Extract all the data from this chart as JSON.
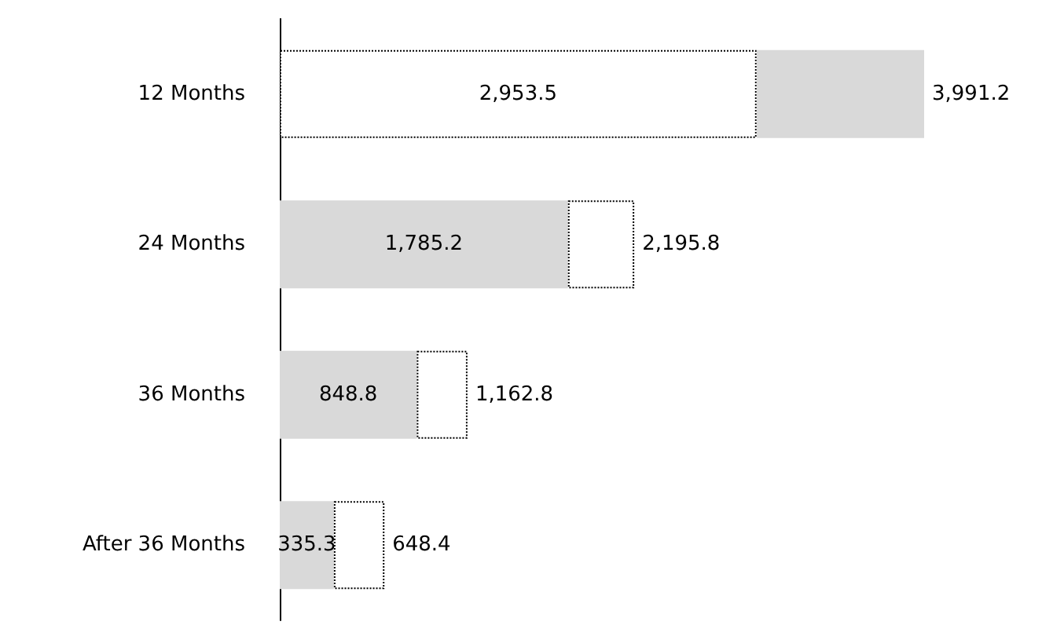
{
  "chart_data": {
    "type": "bar",
    "orientation": "horizontal",
    "stacked": true,
    "categories": [
      "12 Months",
      "24 Months",
      "36 Months",
      "After 36 Months"
    ],
    "series": [
      {
        "colors": [
          "#ffffff",
          "#d9d9d9",
          "#d9d9d9",
          "#d9d9d9"
        ],
        "values": [
          2953.5,
          1785.2,
          848.8,
          335.3
        ],
        "value_labels": [
          "2,953.5",
          "1,785.2",
          "848.8",
          "335.3"
        ]
      },
      {
        "colors": [
          "#d9d9d9",
          "#ffffff",
          "#ffffff",
          "#ffffff"
        ],
        "values": [
          1037.7,
          410.6,
          314.0,
          313.1
        ]
      }
    ],
    "totals": [
      "3,991.2",
      "2,195.8",
      "1,162.8",
      "648.4"
    ]
  }
}
